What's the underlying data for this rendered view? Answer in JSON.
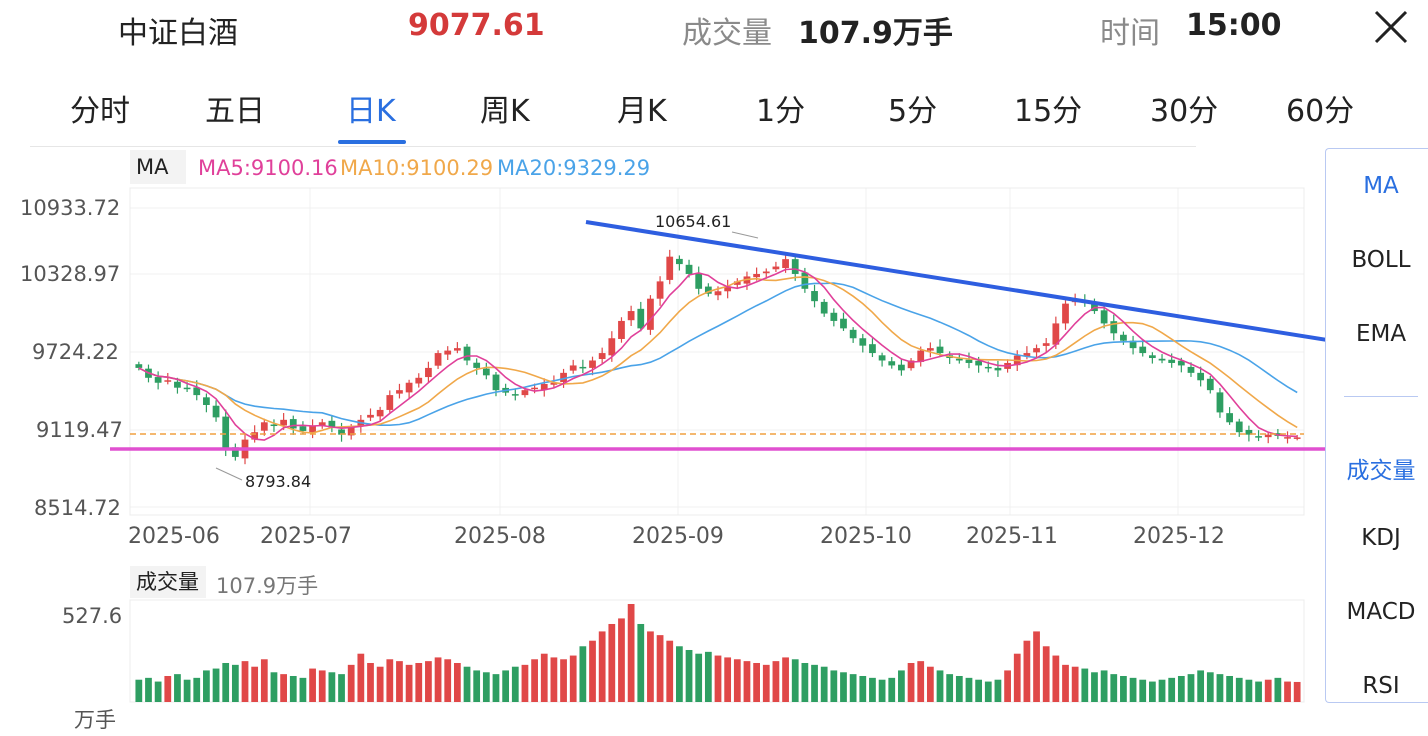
{
  "header": {
    "name": "中证白酒",
    "price": "9077.61",
    "volume_label": "成交量",
    "volume": "107.9万手",
    "time_label": "时间",
    "time": "15:00"
  },
  "tabs": [
    {
      "label": "分时",
      "active": false
    },
    {
      "label": "五日",
      "active": false
    },
    {
      "label": "日K",
      "active": true
    },
    {
      "label": "周K",
      "active": false
    },
    {
      "label": "月K",
      "active": false
    },
    {
      "label": "1分",
      "active": false
    },
    {
      "label": "5分",
      "active": false
    },
    {
      "label": "15分",
      "active": false
    },
    {
      "label": "30分",
      "active": false
    },
    {
      "label": "60分",
      "active": false
    }
  ],
  "indicators": {
    "chip": "MA",
    "ma5": "MA5:9100.16",
    "ma10": "MA10:9100.29",
    "ma20": "MA20:9329.29"
  },
  "price_axis": [
    "10933.72",
    "10328.97",
    "9724.22",
    "9119.47",
    "8514.72"
  ],
  "date_axis": [
    "2025-06",
    "2025-07",
    "2025-08",
    "2025-09",
    "2025-10",
    "2025-11",
    "2025-12"
  ],
  "annotations": {
    "high": "10654.61",
    "low": "8793.84"
  },
  "volume": {
    "chip": "成交量",
    "value": "107.9万手",
    "max": "527.6",
    "unit": "万手"
  },
  "side_menu": {
    "main": [
      {
        "label": "MA",
        "active": true
      },
      {
        "label": "BOLL",
        "active": false
      },
      {
        "label": "EMA",
        "active": false
      }
    ],
    "sub": [
      {
        "label": "成交量",
        "active": true
      },
      {
        "label": "KDJ",
        "active": false
      },
      {
        "label": "MACD",
        "active": false
      },
      {
        "label": "RSI",
        "active": false
      }
    ]
  },
  "colors": {
    "up": "#e04848",
    "down": "#2e9e62",
    "ma5": "#e0409a",
    "ma10": "#f0a84a",
    "ma20": "#4aa3e8",
    "trendline": "#2e5ee0",
    "support": "#e050d0",
    "accent": "#2a6fe0"
  },
  "chart_data": {
    "type": "candlestick",
    "y_range": [
      8514.72,
      10933.72
    ],
    "x_range": [
      "2025-06",
      "2025-12"
    ],
    "close_series": [
      9640,
      9560,
      9520,
      9540,
      9480,
      9470,
      9420,
      9340,
      9240,
      8980,
      8920,
      9060,
      9120,
      9200,
      9180,
      9220,
      9150,
      9130,
      9170,
      9200,
      9160,
      9100,
      9160,
      9220,
      9260,
      9300,
      9420,
      9460,
      9520,
      9560,
      9640,
      9760,
      9780,
      9800,
      9700,
      9640,
      9580,
      9460,
      9440,
      9420,
      9460,
      9480,
      9510,
      9520,
      9600,
      9660,
      9640,
      9700,
      9760,
      9880,
      10020,
      10100,
      9960,
      10200,
      10340,
      10540,
      10480,
      10400,
      10280,
      10240,
      10260,
      10300,
      10340,
      10380,
      10400,
      10420,
      10460,
      10520,
      10400,
      10280,
      10180,
      10080,
      10020,
      9960,
      9880,
      9820,
      9760,
      9700,
      9660,
      9620,
      9700,
      9780,
      9800,
      9760,
      9720,
      9700,
      9680,
      9660,
      9640,
      9620,
      9680,
      9740,
      9760,
      9800,
      9840,
      10000,
      10160,
      10200,
      10180,
      10100,
      10000,
      9920,
      9860,
      9800,
      9760,
      9720,
      9700,
      9680,
      9660,
      9600,
      9540,
      9460,
      9280,
      9200,
      9120,
      9100,
      9080,
      9100,
      9090,
      9080,
      9077.61
    ],
    "volume_series": [
      120,
      130,
      110,
      140,
      150,
      120,
      130,
      170,
      180,
      210,
      200,
      220,
      190,
      230,
      160,
      150,
      140,
      130,
      180,
      170,
      160,
      150,
      200,
      260,
      210,
      190,
      230,
      220,
      200,
      210,
      220,
      240,
      230,
      210,
      190,
      170,
      160,
      150,
      170,
      190,
      200,
      230,
      260,
      240,
      230,
      250,
      300,
      330,
      380,
      420,
      450,
      527.6,
      420,
      380,
      360,
      330,
      300,
      280,
      260,
      270,
      250,
      240,
      230,
      220,
      210,
      200,
      220,
      240,
      230,
      210,
      200,
      190,
      170,
      160,
      150,
      140,
      130,
      120,
      130,
      170,
      210,
      220,
      190,
      170,
      150,
      140,
      130,
      120,
      110,
      120,
      170,
      260,
      330,
      380,
      300,
      250,
      200,
      190,
      180,
      160,
      170,
      150,
      140,
      130,
      120,
      110,
      120,
      130,
      140,
      150,
      170,
      160,
      150,
      140,
      130,
      120,
      110,
      120,
      130,
      110,
      107.9
    ],
    "ma_labels": [
      "MA5:9100.16",
      "MA10:9100.29",
      "MA20:9329.29"
    ],
    "high_label": "10654.61",
    "low_label": "8793.84"
  }
}
